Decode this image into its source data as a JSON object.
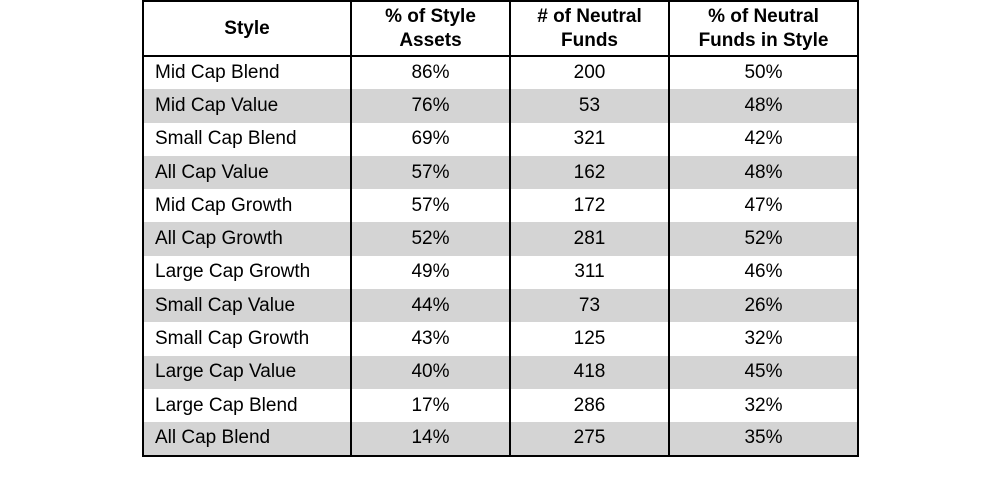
{
  "table": {
    "headers": [
      "Style",
      "% of Style Assets",
      "# of Neutral Funds",
      "% of Neutral Funds in Style"
    ],
    "header_lines": [
      [
        "Style"
      ],
      [
        "% of Style",
        "Assets"
      ],
      [
        "# of Neutral",
        "Funds"
      ],
      [
        "% of Neutral",
        "Funds in Style"
      ]
    ],
    "rows": [
      [
        "Mid Cap Blend",
        "86%",
        "200",
        "50%"
      ],
      [
        "Mid Cap Value",
        "76%",
        "53",
        "48%"
      ],
      [
        "Small Cap Blend",
        "69%",
        "321",
        "42%"
      ],
      [
        "All Cap Value",
        "57%",
        "162",
        "48%"
      ],
      [
        "Mid Cap Growth",
        "57%",
        "172",
        "47%"
      ],
      [
        "All Cap Growth",
        "52%",
        "281",
        "52%"
      ],
      [
        "Large Cap Growth",
        "49%",
        "311",
        "46%"
      ],
      [
        "Small Cap Value",
        "44%",
        "73",
        "26%"
      ],
      [
        "Small Cap Growth",
        "43%",
        "125",
        "32%"
      ],
      [
        "Large Cap Value",
        "40%",
        "418",
        "45%"
      ],
      [
        "Large Cap Blend",
        "17%",
        "286",
        "32%"
      ],
      [
        "All Cap Blend",
        "14%",
        "275",
        "35%"
      ]
    ],
    "colors": {
      "shaded_row": "#d4d4d4",
      "plain_row": "#ffffff",
      "border": "#000000"
    }
  }
}
